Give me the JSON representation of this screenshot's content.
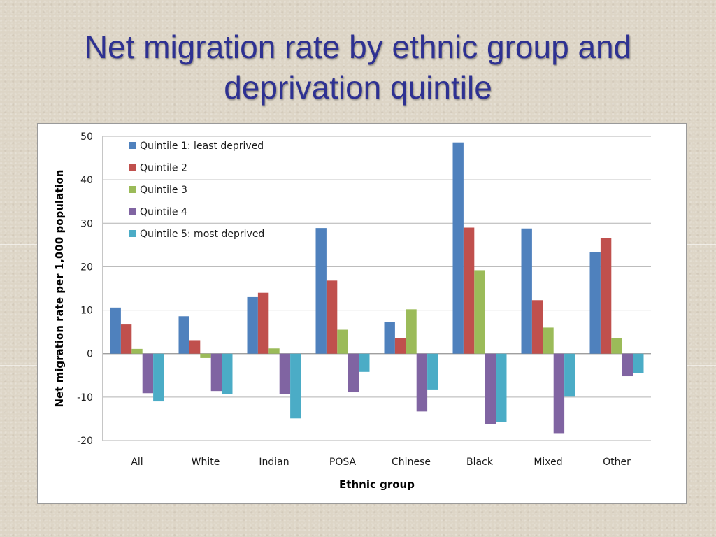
{
  "slide": {
    "title_line1": "Net migration rate by ethnic group and",
    "title_line2": "deprivation quintile"
  },
  "chart_data": {
    "type": "bar",
    "title": "",
    "xlabel": "Ethnic group",
    "ylabel": "Net migration rate per 1,000 population",
    "ylim": [
      -20,
      50
    ],
    "yticks": [
      -20,
      -10,
      0,
      10,
      20,
      30,
      40,
      50
    ],
    "grid": true,
    "legend_position": "top-left",
    "categories": [
      "All",
      "White",
      "Indian",
      "POSA",
      "Chinese",
      "Black",
      "Mixed",
      "Other"
    ],
    "series": [
      {
        "name": "Quintile 1: least deprived",
        "color": "#4f81bd",
        "values": [
          10.6,
          8.6,
          13.0,
          28.9,
          7.3,
          48.6,
          28.8,
          23.4
        ]
      },
      {
        "name": "Quintile 2",
        "color": "#c0504d",
        "values": [
          6.7,
          3.1,
          14.0,
          16.8,
          3.5,
          29.0,
          12.3,
          26.6
        ]
      },
      {
        "name": "Quintile 3",
        "color": "#9bbb59",
        "values": [
          1.1,
          -1.0,
          1.2,
          5.5,
          10.2,
          19.2,
          6.0,
          3.5
        ]
      },
      {
        "name": "Quintile 4",
        "color": "#8064a2",
        "values": [
          -9.1,
          -8.6,
          -9.3,
          -8.9,
          -13.3,
          -16.2,
          -18.3,
          -5.2
        ]
      },
      {
        "name": "Quintile 5: most deprived",
        "color": "#4bacc6",
        "values": [
          -11.0,
          -9.3,
          -14.9,
          -4.2,
          -8.4,
          -15.8,
          -9.9,
          -4.4
        ]
      }
    ]
  }
}
